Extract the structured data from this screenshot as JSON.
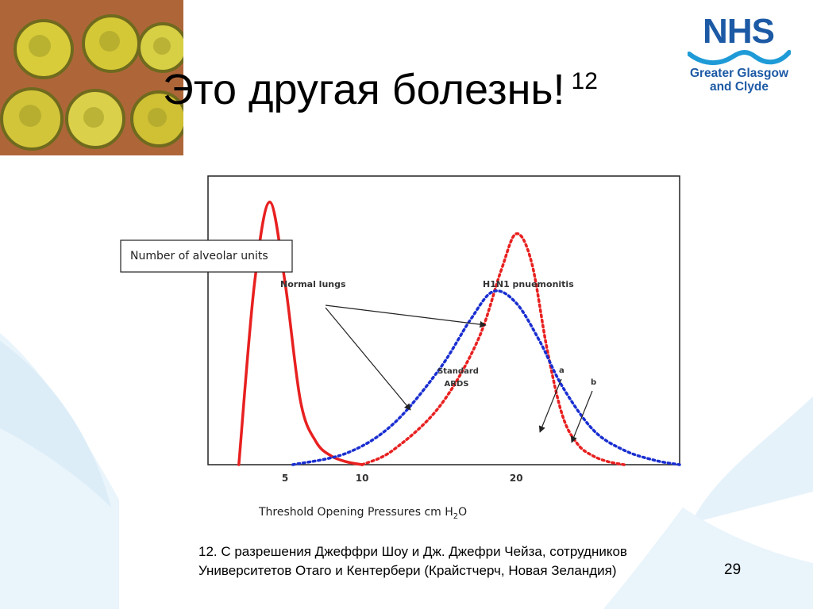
{
  "slide": {
    "title": "Это другая болезнь!",
    "title_ref": "12",
    "page_number": "29",
    "footnote": "12. С разрешения Джеффри Шоу и Дж. Джефри Чейза, сотрудников Университетов Отаго и Кентербери (Крайстчерч, Новая Зеландия)"
  },
  "logo": {
    "name": "NHS",
    "line1": "Greater Glasgow",
    "line2": "and Clyde",
    "color": "#1d5aa5"
  },
  "chart_data": {
    "type": "line",
    "ylabel": "Number of alveolar units",
    "xlabel": "Threshold Opening Pressures cm H2O",
    "xlabel_prefix": "Threshold Opening Pressures cm H",
    "xlabel_sub": "2",
    "xlabel_suffix": "O",
    "x_ticks": [
      "5",
      "10",
      "20"
    ],
    "x_tick_values": [
      5,
      10,
      20
    ],
    "xlim": [
      0,
      30.6
    ],
    "ylim": [
      0,
      1
    ],
    "grid": false,
    "series": [
      {
        "name": "Normal lungs",
        "color": "#e82020",
        "style": "solid",
        "x": [
          2.0,
          3.0,
          4.0,
          5.0,
          6.0,
          7.0,
          8.0,
          9.0,
          10.0
        ],
        "y": [
          0.0,
          0.62,
          0.91,
          0.63,
          0.22,
          0.08,
          0.03,
          0.01,
          0.0
        ]
      },
      {
        "name": "H1N1 pnuemonitis",
        "color": "#e82020",
        "style": "dotted",
        "x": [
          10.0,
          12.0,
          15.0,
          17.5,
          19.0,
          20.0,
          21.0,
          22.0,
          23.0,
          24.0,
          25.0,
          26.0,
          27.0
        ],
        "y": [
          0.0,
          0.05,
          0.2,
          0.43,
          0.67,
          0.8,
          0.7,
          0.4,
          0.17,
          0.07,
          0.03,
          0.01,
          0.0
        ]
      },
      {
        "name": "Standard ARDS",
        "color": "#1a2fd0",
        "style": "dotted",
        "x": [
          5.5,
          9.0,
          12.0,
          15.0,
          17.0,
          18.5,
          20.0,
          21.5,
          23.0,
          25.0,
          27.0,
          29.0,
          30.6
        ],
        "y": [
          0.0,
          0.04,
          0.14,
          0.33,
          0.5,
          0.6,
          0.56,
          0.43,
          0.27,
          0.12,
          0.05,
          0.015,
          0.0
        ]
      }
    ],
    "annotations": [
      "a",
      "b"
    ]
  }
}
